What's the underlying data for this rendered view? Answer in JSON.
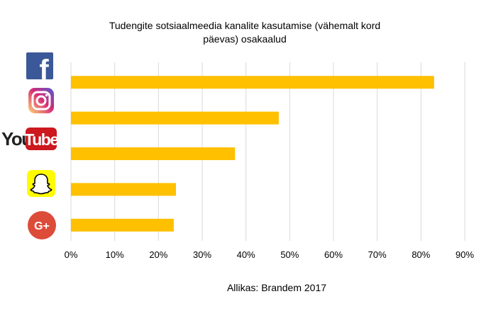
{
  "chart_data": {
    "type": "bar",
    "orientation": "horizontal",
    "title_lines": [
      "Tudengite sotsiaalmeedia kanalite kasutamise (vähemalt kord",
      "päevas) osakaalud"
    ],
    "categories": [
      "Facebook",
      "Instagram",
      "YouTube",
      "Snapchat",
      "Google+"
    ],
    "category_icons": [
      "facebook-icon",
      "instagram-icon",
      "youtube-icon",
      "snapchat-icon",
      "google-plus-icon"
    ],
    "icon_texts": {
      "facebook": "f",
      "youtube_you": "You",
      "youtube_tube": "Tube",
      "google_plus": "G+"
    },
    "values": [
      83,
      47.5,
      37.5,
      24,
      23.5
    ],
    "value_unit": "%",
    "xlim": [
      0,
      90
    ],
    "x_ticks": [
      0,
      10,
      20,
      30,
      40,
      50,
      60,
      70,
      80,
      90
    ],
    "x_tick_labels": [
      "0%",
      "10%",
      "20%",
      "30%",
      "40%",
      "50%",
      "60%",
      "70%",
      "80%",
      "90%"
    ],
    "grid": "vertical",
    "legend": "none",
    "bar_color": "#FFC000",
    "grid_color": "#D9D9D9",
    "source": "Allikas: Brandem 2017"
  },
  "colors": {
    "facebook": "#3B5998",
    "youtube_red": "#CC181E",
    "snapchat": "#FFFC00",
    "google_plus": "#DD4B39",
    "instagram_start": "#FEDA75",
    "instagram_mid": "#D62976",
    "instagram_end": "#4F5BD5"
  }
}
